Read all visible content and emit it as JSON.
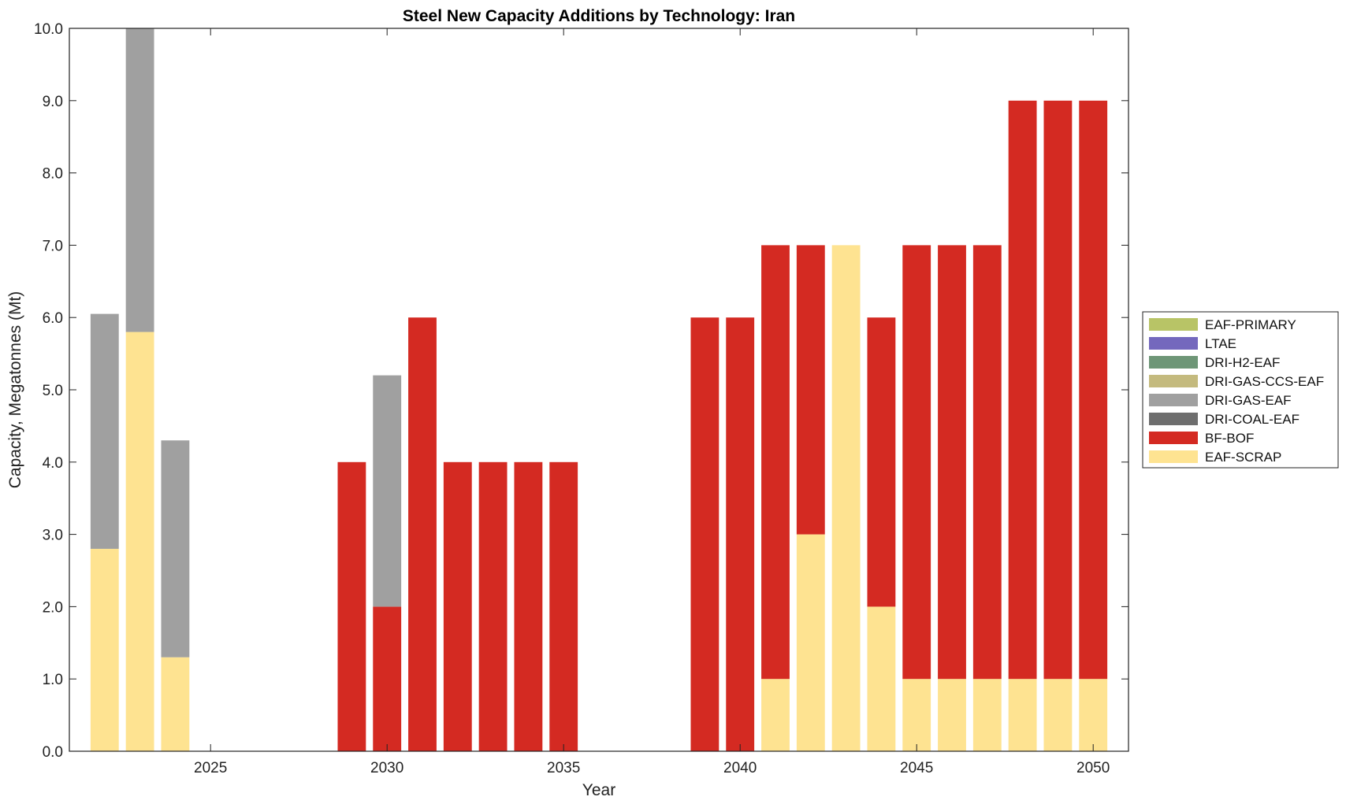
{
  "chart_data": {
    "type": "bar",
    "stacked": true,
    "title": "Steel New Capacity Additions by Technology: Iran",
    "xlabel": "Year",
    "ylabel": "Capacity, Megatonnes (Mt)",
    "x": [
      2022,
      2023,
      2024,
      2025,
      2026,
      2027,
      2028,
      2029,
      2030,
      2031,
      2032,
      2033,
      2034,
      2035,
      2036,
      2037,
      2038,
      2039,
      2040,
      2041,
      2042,
      2043,
      2044,
      2045,
      2046,
      2047,
      2048,
      2049,
      2050
    ],
    "xlim": [
      2021,
      2051
    ],
    "xticks": [
      2025,
      2030,
      2035,
      2040,
      2045,
      2050
    ],
    "ylim": [
      0,
      10
    ],
    "yticks": [
      0,
      1,
      2,
      3,
      4,
      5,
      6,
      7,
      8,
      9,
      10
    ],
    "ytick_labels": [
      "0.0",
      "1.0",
      "2.0",
      "3.0",
      "4.0",
      "5.0",
      "6.0",
      "7.0",
      "8.0",
      "9.0",
      "10.0"
    ],
    "grid": false,
    "legend_position": "outside-right",
    "series": [
      {
        "name": "EAF-SCRAP",
        "color": "#FEE391",
        "values": [
          2.8,
          5.8,
          1.3,
          0,
          0,
          0,
          0,
          0,
          0,
          0,
          0,
          0,
          0,
          0,
          0,
          0,
          0,
          0,
          0,
          1,
          3,
          7,
          2,
          1,
          1,
          1,
          1,
          1,
          1
        ]
      },
      {
        "name": "BF-BOF",
        "color": "#D42A22",
        "values": [
          0,
          0,
          0,
          0,
          0,
          0,
          0,
          4,
          2,
          6,
          4,
          4,
          4,
          4,
          0,
          0,
          0,
          6,
          6,
          6,
          4,
          0,
          4,
          6,
          6,
          6,
          8,
          8,
          8
        ]
      },
      {
        "name": "DRI-COAL-EAF",
        "color": "#6E6E6E",
        "values": [
          0,
          0,
          0,
          0,
          0,
          0,
          0,
          0,
          0,
          0,
          0,
          0,
          0,
          0,
          0,
          0,
          0,
          0,
          0,
          0,
          0,
          0,
          0,
          0,
          0,
          0,
          0,
          0,
          0
        ]
      },
      {
        "name": "DRI-GAS-EAF",
        "color": "#A0A0A0",
        "values": [
          3.25,
          4.2,
          3.0,
          0,
          0,
          0,
          0,
          0,
          3.2,
          0,
          0,
          0,
          0,
          0,
          0,
          0,
          0,
          0,
          0,
          0,
          0,
          0,
          0,
          0,
          0,
          0,
          0,
          0,
          0
        ]
      },
      {
        "name": "DRI-GAS-CCS-EAF",
        "color": "#C4BA7E",
        "values": [
          0,
          0,
          0,
          0,
          0,
          0,
          0,
          0,
          0,
          0,
          0,
          0,
          0,
          0,
          0,
          0,
          0,
          0,
          0,
          0,
          0,
          0,
          0,
          0,
          0,
          0,
          0,
          0,
          0
        ]
      },
      {
        "name": "DRI-H2-EAF",
        "color": "#6E9677",
        "values": [
          0,
          0,
          0,
          0,
          0,
          0,
          0,
          0,
          0,
          0,
          0,
          0,
          0,
          0,
          0,
          0,
          0,
          0,
          0,
          0,
          0,
          0,
          0,
          0,
          0,
          0,
          0,
          0,
          0
        ]
      },
      {
        "name": "LTAE",
        "color": "#7468BD",
        "values": [
          0,
          0,
          0,
          0,
          0,
          0,
          0,
          0,
          0,
          0,
          0,
          0,
          0,
          0,
          0,
          0,
          0,
          0,
          0,
          0,
          0,
          0,
          0,
          0,
          0,
          0,
          0,
          0,
          0
        ]
      },
      {
        "name": "EAF-PRIMARY",
        "color": "#B8C466",
        "values": [
          0,
          0,
          0,
          0,
          0,
          0,
          0,
          0,
          0,
          0,
          0,
          0,
          0,
          0,
          0,
          0,
          0,
          0,
          0,
          0,
          0,
          0,
          0,
          0,
          0,
          0,
          0,
          0,
          0
        ]
      }
    ],
    "legend_order": [
      "EAF-PRIMARY",
      "LTAE",
      "DRI-H2-EAF",
      "DRI-GAS-CCS-EAF",
      "DRI-GAS-EAF",
      "DRI-COAL-EAF",
      "BF-BOF",
      "EAF-SCRAP"
    ]
  }
}
